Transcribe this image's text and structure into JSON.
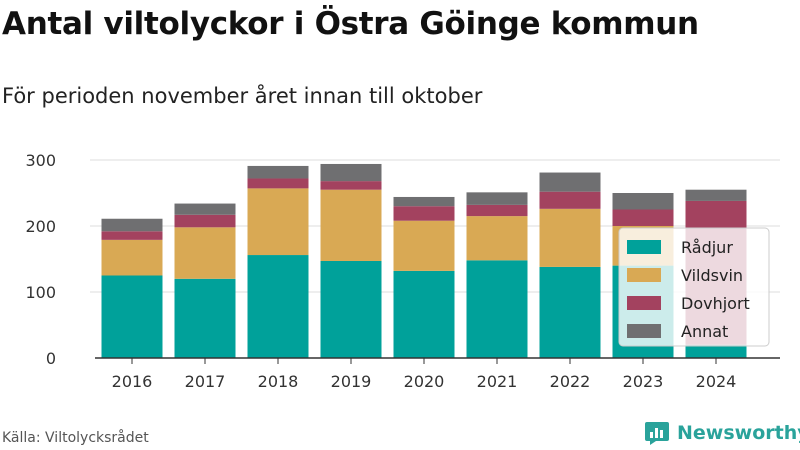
{
  "title": "Antal viltolyckor i Östra Göinge kommun",
  "subtitle": "För perioden november året innan till oktober",
  "source": "Källa: Viltolycksrådet",
  "brand": {
    "name": "Newsworthy",
    "icon": "newsworthy-logo-icon",
    "color": "#2aa39b"
  },
  "chart_data": {
    "type": "bar",
    "stacked": true,
    "title": "",
    "xlabel": "",
    "ylabel": "",
    "categories": [
      "2016",
      "2017",
      "2018",
      "2019",
      "2020",
      "2021",
      "2022",
      "2023",
      "2024"
    ],
    "series": [
      {
        "name": "Rådjur",
        "color": "#00a19a",
        "values": [
          125,
          120,
          156,
          147,
          132,
          148,
          138,
          140,
          20
        ]
      },
      {
        "name": "Vildsvin",
        "color": "#d9a954",
        "values": [
          54,
          78,
          101,
          108,
          76,
          67,
          88,
          60,
          0
        ]
      },
      {
        "name": "Dovhjort",
        "color": "#a3425f",
        "values": [
          13,
          19,
          15,
          13,
          22,
          17,
          26,
          25,
          218
        ]
      },
      {
        "name": "Annat",
        "color": "#6f6f71",
        "values": [
          19,
          17,
          19,
          26,
          14,
          19,
          29,
          25,
          17
        ]
      }
    ],
    "ylim": [
      0,
      300
    ],
    "yticks": [
      0,
      100,
      200,
      300
    ],
    "grid": true,
    "legend_position": "right"
  }
}
